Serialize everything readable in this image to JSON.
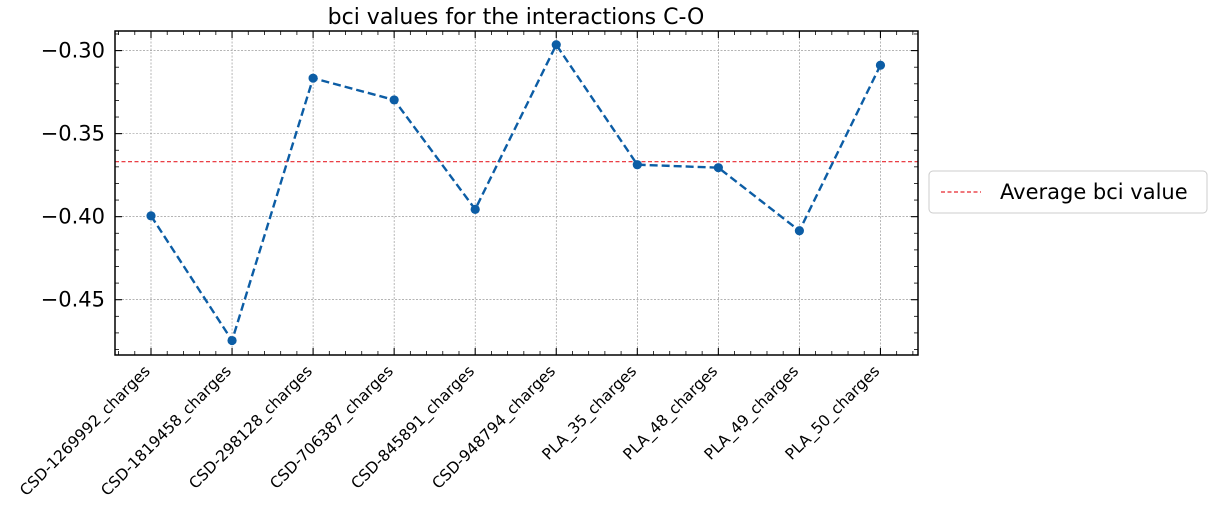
{
  "chart_data": {
    "type": "line",
    "title": "bci values for the interactions C-O",
    "xlabel": "",
    "ylabel": "",
    "categories": [
      "CSD-1269992_charges",
      "CSD-1819458_charges",
      "CSD-298128_charges",
      "CSD-706387_charges",
      "CSD-845891_charges",
      "CSD-948794_charges",
      "PLA_35_charges",
      "PLA_48_charges",
      "PLA_49_charges",
      "PLA_50_charges"
    ],
    "series": [
      {
        "values": [
          -0.3995,
          -0.4746,
          -0.3166,
          -0.3297,
          -0.3956,
          -0.2965,
          -0.3687,
          -0.3705,
          -0.4085,
          -0.3088
        ],
        "color": "#0C5DA5",
        "line_style": "dashed",
        "marker": "circle"
      }
    ],
    "reference_line": {
      "name": "Average bci value",
      "value": -0.3669,
      "color": "#E8262D",
      "line_style": "dashed"
    },
    "yticks": [
      -0.3,
      -0.35,
      -0.4,
      -0.45
    ],
    "ytick_labels": [
      "−0.30",
      "−0.35",
      "−0.40",
      "−0.45"
    ],
    "ylim": [
      -0.4833,
      -0.2882
    ],
    "grid": true,
    "legend": {
      "placement": "outside-right",
      "entries": [
        "Average bci value"
      ]
    }
  }
}
